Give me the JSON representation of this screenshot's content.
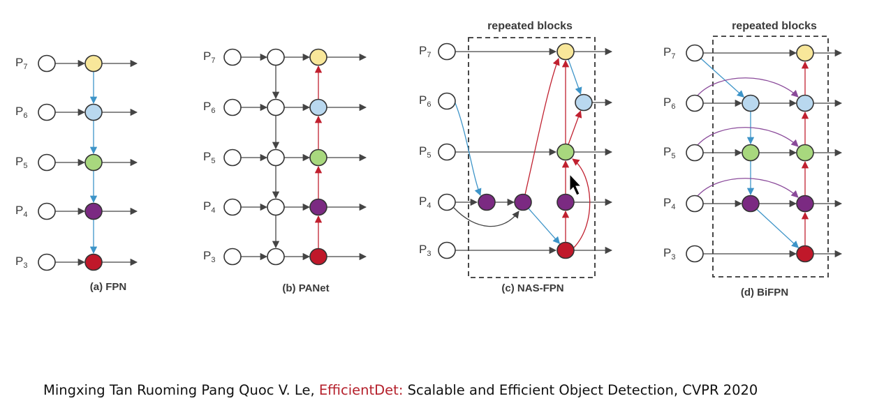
{
  "colors": {
    "white": "#ffffff",
    "yellow": "#f8e79a",
    "blue": "#b9d8ef",
    "green": "#a8d87e",
    "purple": "#7b2a82",
    "red": "#c0182a",
    "edge_gray": "#444444",
    "edge_blue": "#3d94c8",
    "edge_red": "#c0202f",
    "edge_purple": "#8a4a9a"
  },
  "level_labels": [
    {
      "base": "P",
      "sub": "7"
    },
    {
      "base": "P",
      "sub": "6"
    },
    {
      "base": "P",
      "sub": "5"
    },
    {
      "base": "P",
      "sub": "4"
    },
    {
      "base": "P",
      "sub": "3"
    }
  ],
  "panels": [
    {
      "id": "fpn",
      "caption": "(a) FPN"
    },
    {
      "id": "panet",
      "caption": "(b) PANet"
    },
    {
      "id": "nasfpn",
      "caption": "(c) NAS-FPN",
      "repeat_label": "repeated blocks"
    },
    {
      "id": "bifpn",
      "caption": "(d) BiFPN",
      "repeat_label": "repeated blocks"
    }
  ],
  "citation": {
    "authors": "Mingxing Tan Ruoming Pang Quoc V. Le, ",
    "highlight": "EfficientDet:",
    "rest": " Scalable and Efficient Object Detection, CVPR 2020"
  },
  "icons": [
    "cursor-arrow-icon"
  ]
}
